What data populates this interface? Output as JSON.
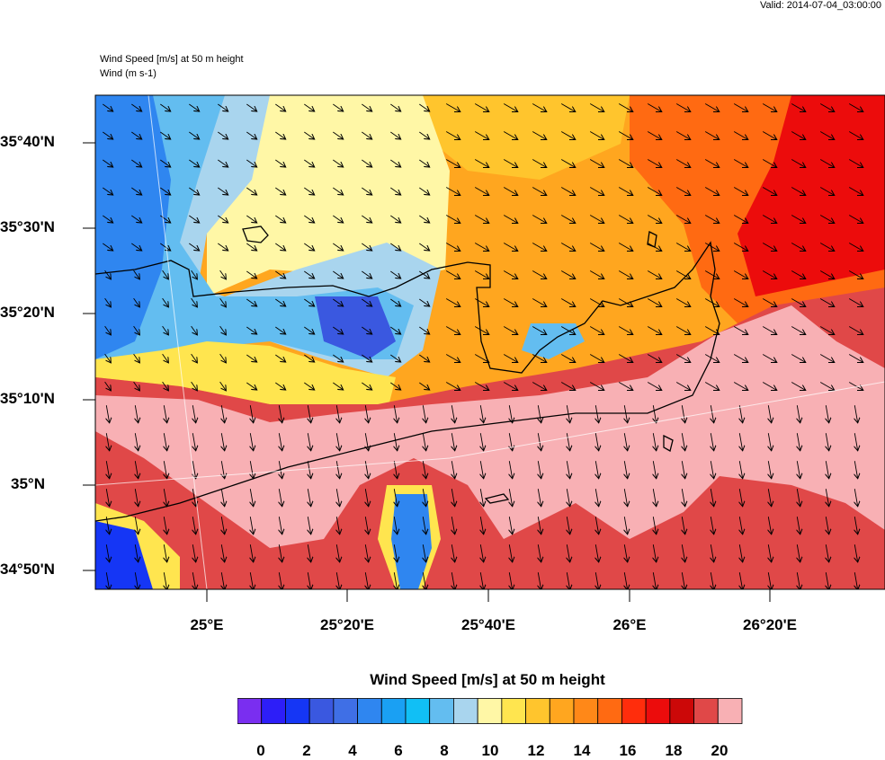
{
  "header": {
    "valid": "Valid: 2014-07-04_03:00:00",
    "title_line1": "Wind Speed [m/s] at 50 m height",
    "title_line2": "Wind   (m s-1)"
  },
  "map": {
    "lat_labels": [
      "35°40'N",
      "35°30'N",
      "35°20'N",
      "35°10'N",
      "35°N",
      "34°50'N"
    ],
    "lon_labels": [
      "25°E",
      "25°20'E",
      "25°40'E",
      "26°E",
      "26°20'E"
    ]
  },
  "legend": {
    "title": "Wind Speed [m/s] at 50 m height",
    "tick_labels": [
      "0",
      "2",
      "4",
      "6",
      "8",
      "10",
      "12",
      "14",
      "16",
      "18",
      "20"
    ],
    "colors": [
      "#7a2ef0",
      "#2d1ef8",
      "#1536f5",
      "#3a58e0",
      "#3f6fe6",
      "#2f86f0",
      "#1aa0f3",
      "#11bff5",
      "#63bdf0",
      "#a9d5ee",
      "#fff7a6",
      "#ffe54f",
      "#ffc52d",
      "#ffa61f",
      "#ff8818",
      "#ff6a12",
      "#ff2d0c",
      "#ec0c0c",
      "#cc0808",
      "#e04848",
      "#f8b0b4"
    ]
  }
}
